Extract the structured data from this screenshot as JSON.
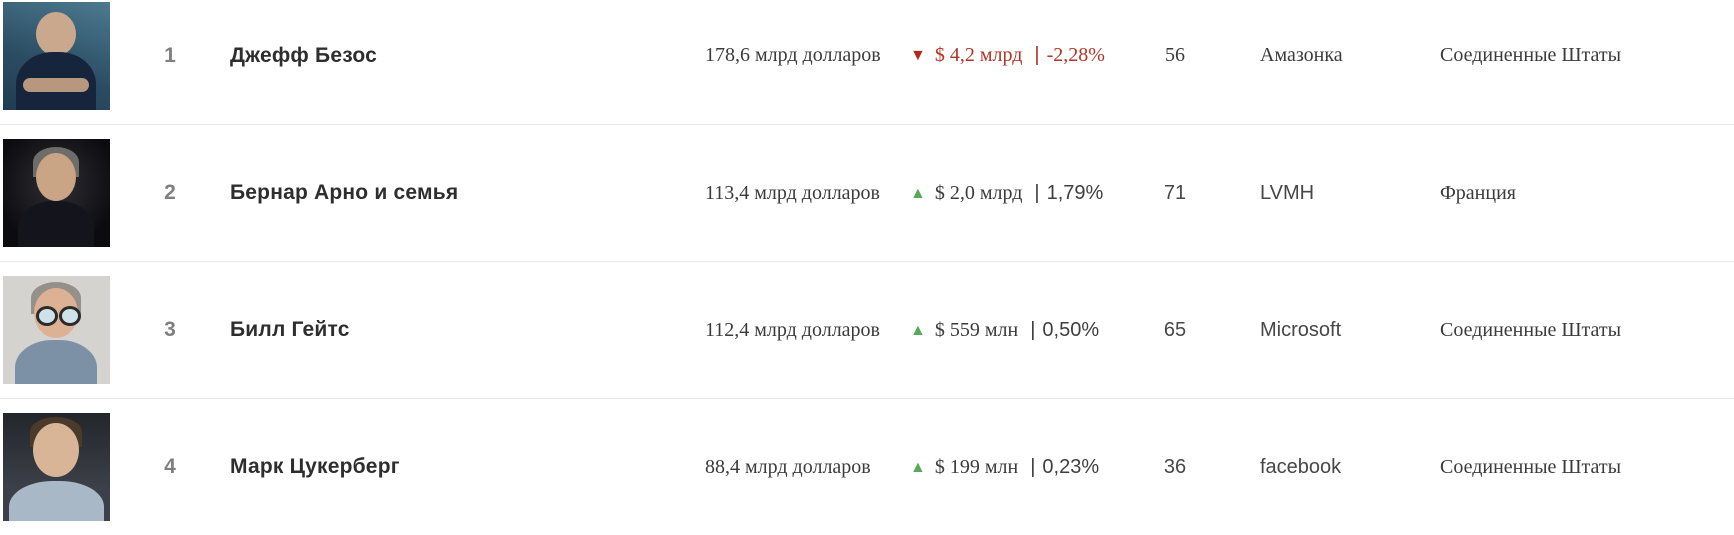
{
  "colors": {
    "negative": "#b23327",
    "positive": "#55aa5a"
  },
  "rows": [
    {
      "rank": "1",
      "name": "Джефф Безос",
      "net_worth": "178,6 млрд долларов",
      "direction": "down",
      "arrow": "▼",
      "change_amount": "$ 4,2 млрд",
      "separator": "|",
      "change_percent": "-2,28%",
      "age": "56",
      "company": "Амазонка",
      "country": "Соединенные Штаты",
      "photo": "jeff-bezos"
    },
    {
      "rank": "2",
      "name": "Бернар Арно и семья",
      "net_worth": "113,4 млрд долларов",
      "direction": "up",
      "arrow": "▲",
      "change_amount": "$ 2,0 млрд",
      "separator": "|",
      "change_percent": "1,79%",
      "age": "71",
      "company": "LVMH",
      "country": "Франция",
      "photo": "bernard-arnault"
    },
    {
      "rank": "3",
      "name": "Билл Гейтс",
      "net_worth": "112,4 млрд долларов",
      "direction": "up",
      "arrow": "▲",
      "change_amount": "$ 559 млн",
      "separator": "|",
      "change_percent": "0,50%",
      "age": "65",
      "company": "Microsoft",
      "country": "Соединенные Штаты",
      "photo": "bill-gates"
    },
    {
      "rank": "4",
      "name": "Марк Цукерберг",
      "net_worth": "88,4 млрд долларов",
      "direction": "up",
      "arrow": "▲",
      "change_amount": "$ 199 млн",
      "separator": "|",
      "change_percent": "0,23%",
      "age": "36",
      "company": "facebook",
      "country": "Соединенные Штаты",
      "photo": "mark-zuckerberg"
    }
  ]
}
